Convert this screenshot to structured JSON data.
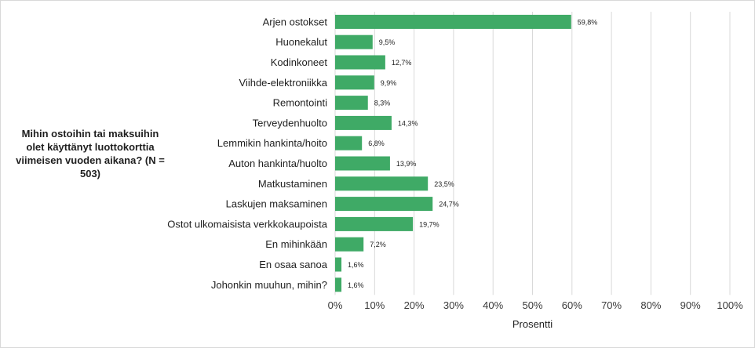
{
  "chart_data": {
    "type": "bar",
    "orientation": "horizontal",
    "title": "Mihin ostoihin tai maksuihin olet käyttänyt luottokorttia viimeisen vuoden aikana? (N = 503)",
    "xlabel": "Prosentti",
    "ylabel": "",
    "xlim": [
      0,
      100
    ],
    "x_ticks": [
      "0%",
      "10%",
      "20%",
      "30%",
      "40%",
      "50%",
      "60%",
      "70%",
      "80%",
      "90%",
      "100%"
    ],
    "grid": true,
    "legend": "none",
    "categories": [
      "Arjen ostokset",
      "Huonekalut",
      "Kodinkoneet",
      "Viihde-elektroniikka",
      "Remontointi",
      "Terveydenhuolto",
      "Lemmikin hankinta/hoito",
      "Auton hankinta/huolto",
      "Matkustaminen",
      "Laskujen maksaminen",
      "Ostot ulkomaisista verkkokaupoista",
      "En mihinkään",
      "En osaa sanoa",
      "Johonkin muuhun, mihin?"
    ],
    "values": [
      59.8,
      9.5,
      12.7,
      9.9,
      8.3,
      14.3,
      6.8,
      13.9,
      23.5,
      24.7,
      19.7,
      7.2,
      1.6,
      1.6
    ],
    "value_labels": [
      "59,8%",
      "9,5%",
      "12,7%",
      "9,9%",
      "8,3%",
      "14,3%",
      "6,8%",
      "13,9%",
      "23,5%",
      "24,7%",
      "19,7%",
      "7,2%",
      "1,6%",
      "1,6%"
    ],
    "colors": {
      "bar": "#3faa66",
      "grid": "#d9d9d9"
    }
  }
}
